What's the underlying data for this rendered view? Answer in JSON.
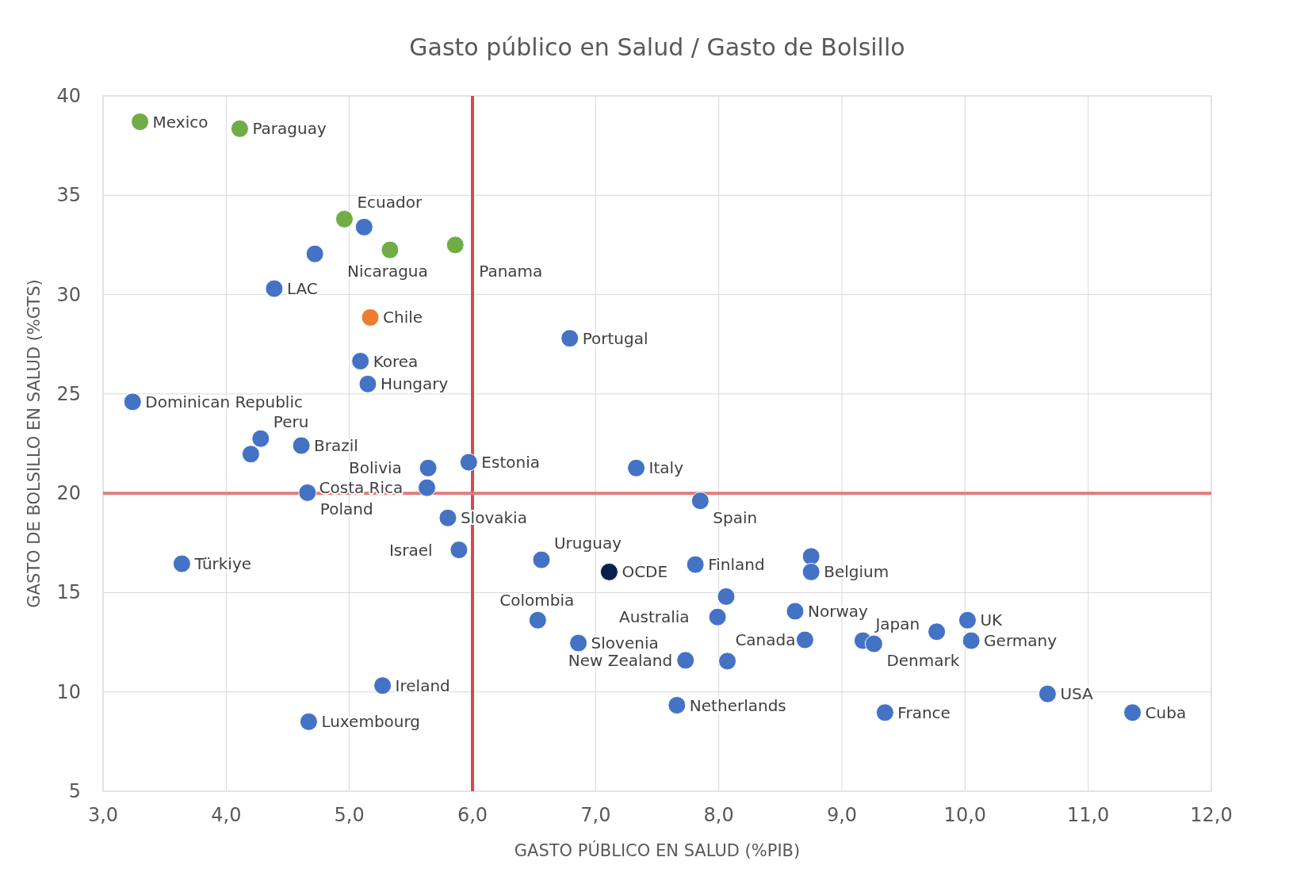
{
  "chart_data": {
    "type": "scatter",
    "title": "Gasto público en Salud / Gasto de Bolsillo",
    "xlabel": "GASTO PÚBLICO EN SALUD (%PIB)",
    "ylabel": "GASTO DE BOLSILLO EN SALUD (%GTS)",
    "xlim": [
      3,
      12
    ],
    "ylim": [
      5,
      40
    ],
    "xticks": [
      {
        "value": 3,
        "label": "3,0"
      },
      {
        "value": 4,
        "label": "4,0"
      },
      {
        "value": 5,
        "label": "5,0"
      },
      {
        "value": 6,
        "label": "6,0"
      },
      {
        "value": 7,
        "label": "7,0"
      },
      {
        "value": 8,
        "label": "8,0"
      },
      {
        "value": 9,
        "label": "9,0"
      },
      {
        "value": 10,
        "label": "10,0"
      },
      {
        "value": 11,
        "label": "11,0"
      },
      {
        "value": 12,
        "label": "12,0"
      }
    ],
    "yticks": [
      5,
      10,
      15,
      20,
      25,
      30,
      35,
      40
    ],
    "grid": true,
    "marker": "circle",
    "ref_lines": [
      {
        "axis": "x",
        "value": 6,
        "color": "#d9494b"
      },
      {
        "axis": "y",
        "value": 20,
        "color": "#e07b7c"
      }
    ],
    "series": [
      {
        "color": "#4472c4",
        "x": [
          5.12,
          4.72,
          4.39,
          6.79,
          5.09,
          5.15,
          3.24,
          4.28,
          4.2,
          4.61,
          5.64,
          5.97,
          7.33,
          5.63,
          4.66,
          7.85,
          5.8,
          5.89,
          3.64,
          6.56,
          7.81,
          8.75,
          8.75,
          8.06,
          7.99,
          8.62,
          6.53,
          6.86,
          8.7,
          9.17,
          9.26,
          9.77,
          10.02,
          10.05,
          7.73,
          8.07,
          10.67,
          11.36,
          9.35,
          7.66,
          5.27,
          4.67
        ],
        "values": [
          33.4,
          32.05,
          30.3,
          27.8,
          26.65,
          25.5,
          24.6,
          22.75,
          21.97,
          22.4,
          21.27,
          21.56,
          21.27,
          20.28,
          20.03,
          19.62,
          18.76,
          17.15,
          16.45,
          16.65,
          16.41,
          16.82,
          16.04,
          14.8,
          13.77,
          14.06,
          13.61,
          12.46,
          12.62,
          12.58,
          12.42,
          13.03,
          13.61,
          12.58,
          11.59,
          11.55,
          9.9,
          8.96,
          8.96,
          9.33,
          10.32,
          8.5
        ]
      },
      {
        "color": "#70ad47",
        "x": [
          3.3,
          4.11,
          4.96,
          5.33,
          5.86
        ],
        "values": [
          38.7,
          38.35,
          33.8,
          32.25,
          32.5
        ]
      },
      {
        "color": "#ed7d31",
        "x": [
          5.17
        ],
        "values": [
          28.85
        ]
      },
      {
        "color": "#0b1f4d",
        "x": [
          7.11
        ],
        "values": [
          16.04
        ]
      }
    ],
    "annotations": [
      {
        "text": "Mexico",
        "x": 3.3,
        "y": 38.7
      },
      {
        "text": "Paraguay",
        "x": 4.11,
        "y": 38.35
      },
      {
        "text": "Ecuador",
        "x": 4.96,
        "y": 33.8
      },
      {
        "text": "Nicaragua",
        "x": 5.33,
        "y": 32.25
      },
      {
        "text": "Panama",
        "x": 5.86,
        "y": 32.5
      },
      {
        "text": "LAC",
        "x": 4.39,
        "y": 30.3
      },
      {
        "text": "Chile",
        "x": 5.17,
        "y": 28.85
      },
      {
        "text": "Portugal",
        "x": 6.79,
        "y": 27.8
      },
      {
        "text": "Korea",
        "x": 5.09,
        "y": 26.65
      },
      {
        "text": "Hungary",
        "x": 5.15,
        "y": 25.5
      },
      {
        "text": "Dominican Republic",
        "x": 3.24,
        "y": 24.6
      },
      {
        "text": "Peru",
        "x": 4.28,
        "y": 22.75
      },
      {
        "text": "Brazil",
        "x": 4.61,
        "y": 22.4
      },
      {
        "text": "Bolivia",
        "x": 5.64,
        "y": 21.27
      },
      {
        "text": "Estonia",
        "x": 5.97,
        "y": 21.56
      },
      {
        "text": "Italy",
        "x": 7.33,
        "y": 21.27
      },
      {
        "text": "Costa Rica",
        "x": 5.63,
        "y": 20.28
      },
      {
        "text": "Poland",
        "x": 4.66,
        "y": 20.03
      },
      {
        "text": "Spain",
        "x": 7.85,
        "y": 19.62
      },
      {
        "text": "Slovakia",
        "x": 5.8,
        "y": 18.76
      },
      {
        "text": "Israel",
        "x": 5.89,
        "y": 17.15
      },
      {
        "text": "Türkiye",
        "x": 3.64,
        "y": 16.45
      },
      {
        "text": "Uruguay",
        "x": 6.56,
        "y": 16.65
      },
      {
        "text": "OCDE",
        "x": 7.11,
        "y": 16.04
      },
      {
        "text": "Finland",
        "x": 7.81,
        "y": 16.41
      },
      {
        "text": "Belgium",
        "x": 8.75,
        "y": 16.04
      },
      {
        "text": "Australia",
        "x": 7.99,
        "y": 13.77
      },
      {
        "text": "Norway",
        "x": 8.62,
        "y": 14.06
      },
      {
        "text": "Colombia",
        "x": 6.53,
        "y": 13.61
      },
      {
        "text": "Slovenia",
        "x": 6.86,
        "y": 12.46
      },
      {
        "text": "Canada",
        "x": 8.7,
        "y": 12.62
      },
      {
        "text": "Japan",
        "x": 9.17,
        "y": 12.58
      },
      {
        "text": "Denmark",
        "x": 9.26,
        "y": 12.42
      },
      {
        "text": "UK",
        "x": 10.02,
        "y": 13.61
      },
      {
        "text": "Germany",
        "x": 10.05,
        "y": 12.58
      },
      {
        "text": "New Zealand",
        "x": 7.73,
        "y": 11.59
      },
      {
        "text": "USA",
        "x": 10.67,
        "y": 9.9
      },
      {
        "text": "Cuba",
        "x": 11.36,
        "y": 8.96
      },
      {
        "text": "France",
        "x": 9.35,
        "y": 8.96
      },
      {
        "text": "Netherlands",
        "x": 7.66,
        "y": 9.33
      },
      {
        "text": "Ireland",
        "x": 5.27,
        "y": 10.32
      },
      {
        "text": "Luxembourg",
        "x": 4.67,
        "y": 8.5
      }
    ]
  }
}
